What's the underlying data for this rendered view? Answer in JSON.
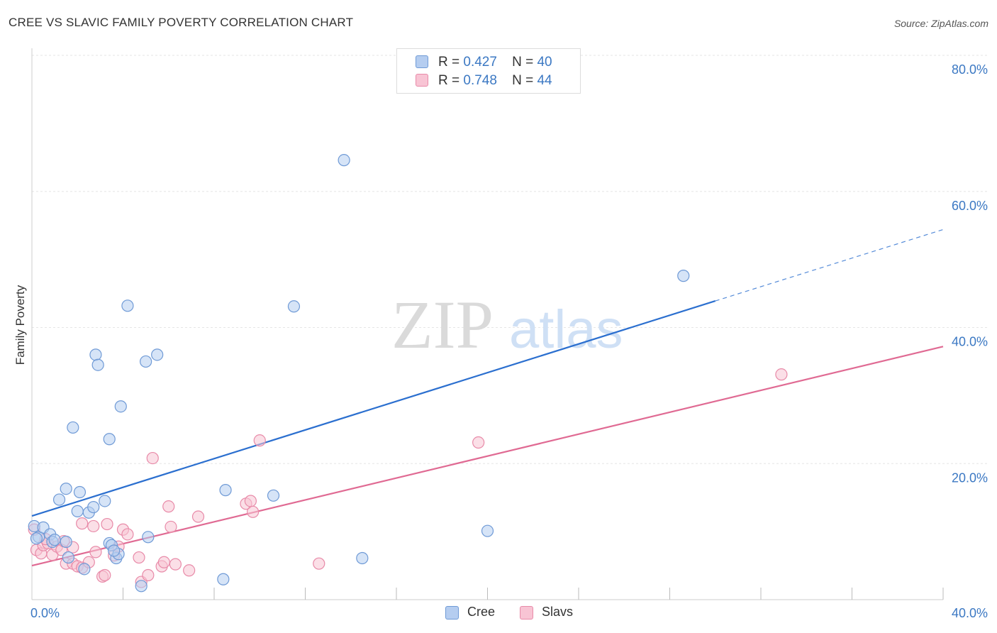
{
  "header": {
    "title": "CREE VS SLAVIC FAMILY POVERTY CORRELATION CHART",
    "source": "Source: ZipAtlas.com"
  },
  "watermark": {
    "zip": "ZIP",
    "atlas": "atlas"
  },
  "legend": {
    "cree": {
      "r_label": "R =",
      "r_value": "0.427",
      "n_label": "N =",
      "n_value": "40"
    },
    "slavs": {
      "r_label": "R =",
      "r_value": "0.748",
      "n_label": "N =",
      "n_value": "44"
    }
  },
  "colors": {
    "cree_fill": "#b5cdf0",
    "cree_stroke": "#6f9ad6",
    "cree_line": "#2b6fcf",
    "slavs_fill": "#f8c4d4",
    "slavs_stroke": "#e88aa8",
    "slavs_line": "#e06a93",
    "axis_text": "#3b78c3",
    "grid": "#e6e6e6"
  },
  "chart_data": {
    "type": "scatter",
    "title": "CREE VS SLAVIC FAMILY POVERTY CORRELATION CHART",
    "xlabel": "",
    "ylabel": "Family Poverty",
    "xlim": [
      0,
      40
    ],
    "ylim": [
      0,
      80
    ],
    "x_tick_labels": [
      {
        "value": 0,
        "label": "0.0%"
      },
      {
        "value": 40,
        "label": "40.0%"
      }
    ],
    "y_tick_labels": [
      {
        "value": 20,
        "label": "20.0%"
      },
      {
        "value": 40,
        "label": "40.0%"
      },
      {
        "value": 60,
        "label": "60.0%"
      },
      {
        "value": 80,
        "label": "80.0%"
      }
    ],
    "x_minor_ticks": [
      4,
      8,
      12,
      16,
      20,
      24,
      28,
      32,
      36,
      40
    ],
    "series": [
      {
        "name": "Cree",
        "points": [
          [
            0.1,
            10.8
          ],
          [
            0.3,
            9.2
          ],
          [
            0.5,
            10.6
          ],
          [
            0.8,
            9.6
          ],
          [
            0.9,
            8.5
          ],
          [
            1.2,
            14.7
          ],
          [
            1.5,
            8.5
          ],
          [
            1.5,
            16.3
          ],
          [
            1.6,
            6.2
          ],
          [
            1.8,
            25.3
          ],
          [
            2.0,
            13.0
          ],
          [
            2.1,
            15.8
          ],
          [
            2.3,
            4.5
          ],
          [
            2.5,
            12.8
          ],
          [
            2.7,
            13.6
          ],
          [
            2.8,
            36.0
          ],
          [
            2.9,
            34.5
          ],
          [
            3.2,
            14.5
          ],
          [
            3.4,
            23.6
          ],
          [
            3.4,
            8.3
          ],
          [
            3.5,
            8.0
          ],
          [
            3.7,
            6.1
          ],
          [
            3.8,
            6.7
          ],
          [
            3.9,
            28.4
          ],
          [
            4.2,
            43.2
          ],
          [
            4.8,
            2.0
          ],
          [
            5.0,
            35.0
          ],
          [
            5.1,
            9.2
          ],
          [
            5.5,
            36.0
          ],
          [
            8.4,
            3.0
          ],
          [
            8.5,
            16.1
          ],
          [
            10.6,
            15.3
          ],
          [
            11.5,
            43.1
          ],
          [
            13.7,
            64.6
          ],
          [
            14.5,
            6.1
          ],
          [
            20.0,
            10.1
          ],
          [
            28.6,
            47.6
          ],
          [
            0.2,
            9.0
          ],
          [
            1.0,
            8.8
          ],
          [
            3.6,
            7.2
          ]
        ]
      },
      {
        "name": "Slavs",
        "points": [
          [
            0.1,
            10.3
          ],
          [
            0.2,
            7.3
          ],
          [
            0.4,
            6.8
          ],
          [
            0.5,
            8.0
          ],
          [
            0.7,
            8.3
          ],
          [
            0.9,
            6.6
          ],
          [
            1.1,
            7.8
          ],
          [
            1.3,
            7.3
          ],
          [
            1.4,
            8.6
          ],
          [
            1.5,
            5.3
          ],
          [
            1.8,
            7.7
          ],
          [
            1.8,
            5.3
          ],
          [
            2.0,
            4.9
          ],
          [
            2.2,
            4.7
          ],
          [
            2.2,
            11.2
          ],
          [
            2.5,
            5.5
          ],
          [
            2.7,
            10.8
          ],
          [
            2.8,
            7.0
          ],
          [
            3.1,
            3.4
          ],
          [
            3.2,
            3.6
          ],
          [
            3.3,
            11.1
          ],
          [
            3.6,
            6.5
          ],
          [
            3.8,
            7.8
          ],
          [
            4.0,
            10.3
          ],
          [
            4.2,
            9.6
          ],
          [
            4.7,
            6.2
          ],
          [
            4.8,
            2.6
          ],
          [
            5.1,
            3.6
          ],
          [
            5.3,
            20.8
          ],
          [
            5.7,
            4.9
          ],
          [
            5.8,
            5.5
          ],
          [
            6.0,
            13.7
          ],
          [
            6.1,
            10.7
          ],
          [
            6.3,
            5.2
          ],
          [
            6.9,
            4.3
          ],
          [
            7.3,
            12.2
          ],
          [
            9.4,
            14.1
          ],
          [
            9.6,
            14.5
          ],
          [
            9.7,
            12.9
          ],
          [
            10.0,
            23.4
          ],
          [
            12.6,
            5.3
          ],
          [
            19.6,
            23.1
          ],
          [
            32.9,
            33.1
          ],
          [
            0.6,
            8.9
          ]
        ]
      }
    ],
    "trendlines": [
      {
        "series": "Cree",
        "x_start": 0,
        "y_start": 12.3,
        "x_solid_end": 30.0,
        "y_solid_end": 43.9,
        "x_end": 40,
        "y_end": 54.4,
        "dashed_extension": true
      },
      {
        "series": "Slavs",
        "x_start": 0,
        "y_start": 5.0,
        "x_end": 40,
        "y_end": 37.2,
        "dashed_extension": false
      }
    ],
    "legend_entries": [
      "Cree",
      "Slavs"
    ],
    "legend_position": "top-center"
  }
}
